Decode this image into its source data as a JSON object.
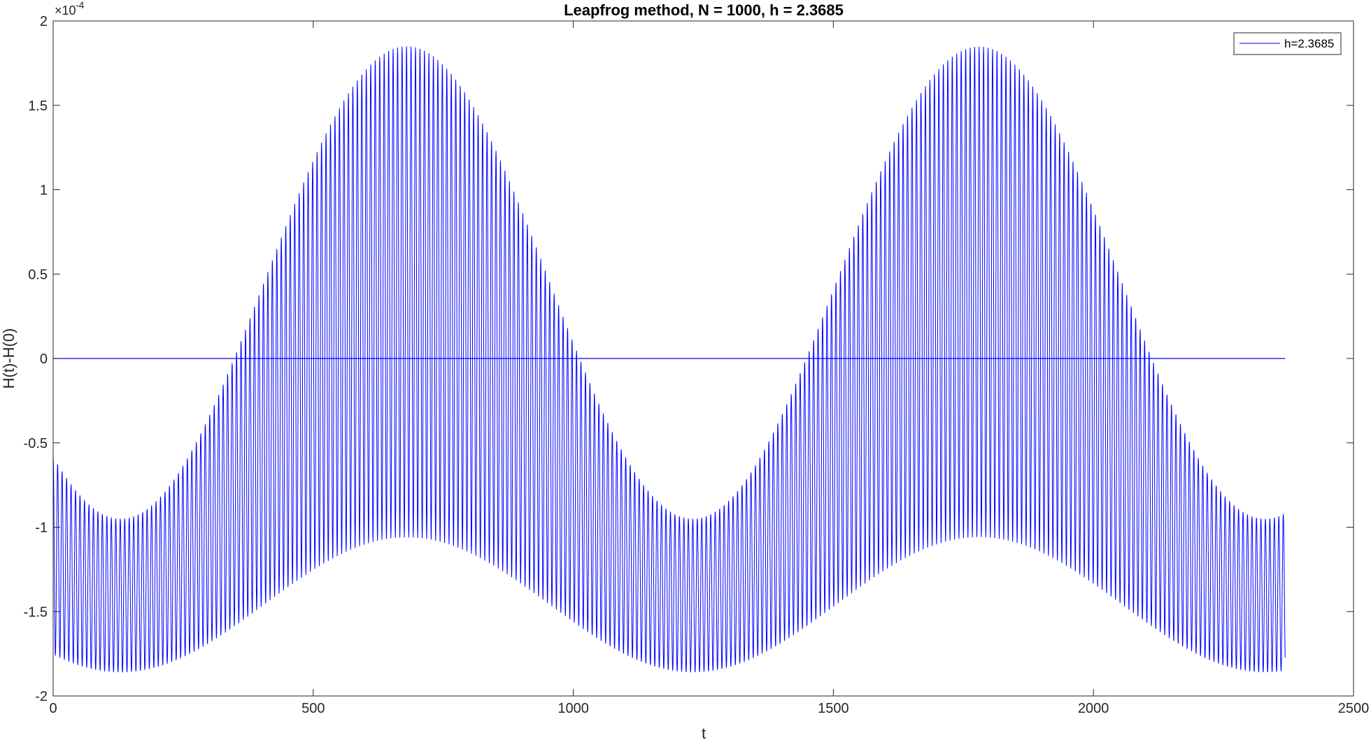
{
  "chart_data": {
    "type": "line",
    "title": "Leapfrog method, N = 1000, h = 2.3685",
    "xlabel": "t",
    "ylabel": "H(t)-H(0)",
    "y_exponent_base": "×10",
    "y_exponent_power": "-4",
    "xlim": [
      0,
      2500
    ],
    "ylim": [
      -2,
      2
    ],
    "y_scale": 0.0001,
    "xticks": [
      0,
      500,
      1000,
      1500,
      2000,
      2500
    ],
    "xtick_labels": [
      "0",
      "500",
      "1000",
      "1500",
      "2000",
      "2500"
    ],
    "yticks": [
      -2,
      -1.5,
      -1,
      -0.5,
      0,
      0.5,
      1,
      1.5,
      2
    ],
    "ytick_labels": [
      "-2",
      "-1.5",
      "-1",
      "-0.5",
      "0",
      "0.5",
      "1",
      "1.5",
      "2"
    ],
    "grid": false,
    "legend_location": "top-right",
    "series": [
      {
        "name": "h=2.3685",
        "color": "#0000ff",
        "t_max": 2368.5,
        "slow_period": 1100,
        "oscillation_period": 8.6,
        "upper_envelope": {
          "min": -0.95,
          "max": 1.85
        },
        "lower_envelope": {
          "min": -1.86,
          "max": -1.06
        },
        "note_shape": "rapid oscillation between envelopes, slow modulation with maxima near t=680 and t=1780"
      },
      {
        "name": "",
        "color": "#0000ff",
        "x": [
          0,
          2368.5
        ],
        "y": [
          0,
          0
        ]
      }
    ]
  }
}
